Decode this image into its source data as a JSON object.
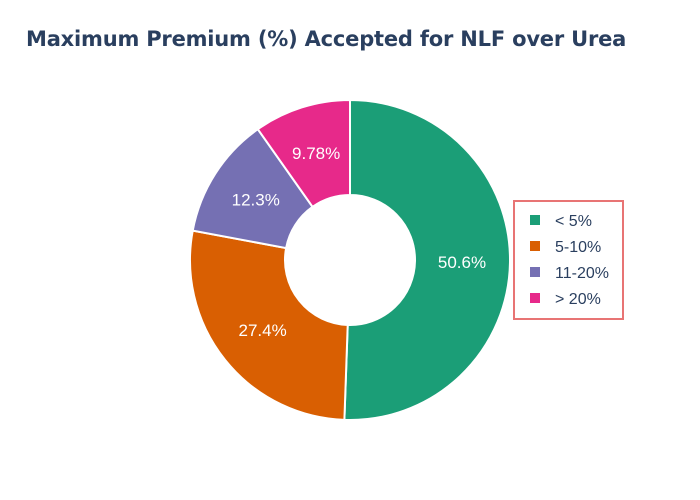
{
  "title": "Maximum Premium (%) Accepted for NLF over Urea",
  "chart_data": {
    "type": "pie",
    "hole": true,
    "title": "Maximum Premium (%) Accepted for NLF over Urea",
    "categories": [
      "<   5%",
      "5-10%",
      "11-20%",
      "> 20%"
    ],
    "values": [
      50.6,
      27.4,
      12.3,
      9.78
    ],
    "labels": [
      "50.6%",
      "27.4%",
      "12.3%",
      "9.78%"
    ],
    "colors": [
      "#1b9e77",
      "#d95f02",
      "#7570b3",
      "#e7298a"
    ],
    "legend_placement": "right",
    "legend_border_color": "#e87474"
  }
}
